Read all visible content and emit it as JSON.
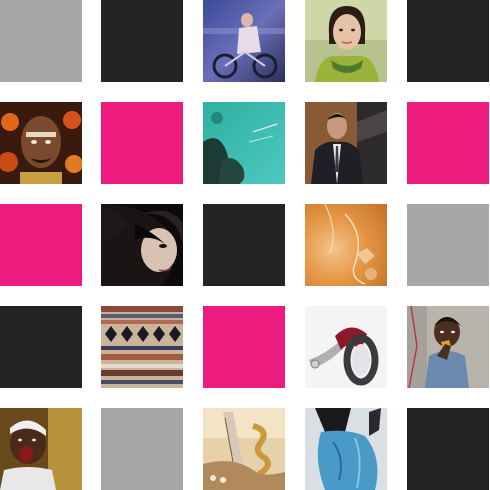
{
  "colors": {
    "gray": "#a5a7a9",
    "black": "#242424",
    "pink": "#ec1b7d",
    "background": "#ffffff"
  },
  "grid": {
    "rows": 5,
    "columns": 5,
    "tiles": [
      [
        "gray-square",
        "black-square",
        "cyclist-photo",
        "woman-portrait-photo",
        "black-square"
      ],
      [
        "painted-face-photo",
        "pink-square",
        "aerial-coast-photo",
        "man-in-suit-photo",
        "pink-square"
      ],
      [
        "pink-square",
        "dark-hair-woman-photo",
        "black-square",
        "orange-abstract-photo",
        "gray-square"
      ],
      [
        "black-square",
        "woven-textile-photo",
        "pink-square",
        "wheel-object-photo",
        "child-photo"
      ],
      [
        "shouting-man-photo",
        "gray-square",
        "sculpture-detail-photo",
        "blue-garment-photo",
        "black-square"
      ]
    ]
  }
}
